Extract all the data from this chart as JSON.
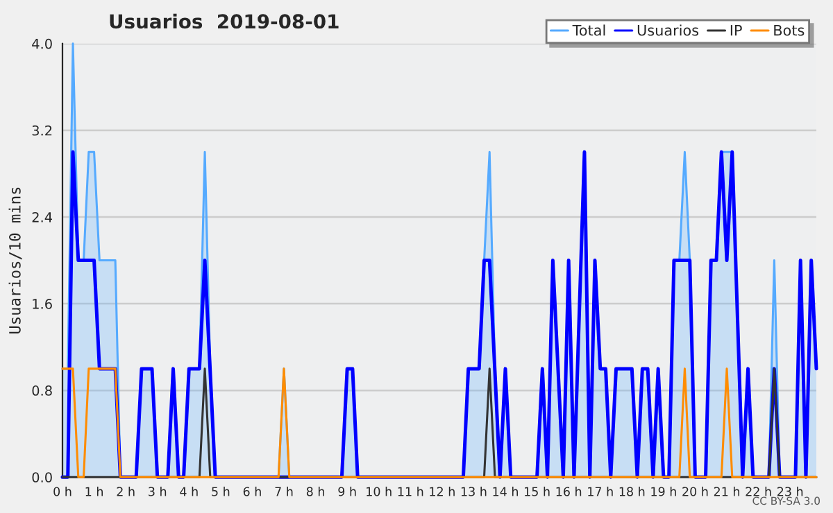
{
  "chart_data": {
    "type": "line",
    "title": "Usuarios  2019-08-01",
    "ylabel": "Usuarios/10 mins",
    "xlim": [
      0,
      23.83
    ],
    "ylim": [
      0,
      4
    ],
    "xticks": [
      {
        "value": 0,
        "label": "0 h"
      },
      {
        "value": 1,
        "label": "1 h"
      },
      {
        "value": 2,
        "label": "2 h"
      },
      {
        "value": 3,
        "label": "3 h"
      },
      {
        "value": 4,
        "label": "4 h"
      },
      {
        "value": 5,
        "label": "5 h"
      },
      {
        "value": 6,
        "label": "6 h"
      },
      {
        "value": 7,
        "label": "7 h"
      },
      {
        "value": 8,
        "label": "8 h"
      },
      {
        "value": 9,
        "label": "9 h"
      },
      {
        "value": 10,
        "label": "10 h"
      },
      {
        "value": 11,
        "label": "11 h"
      },
      {
        "value": 12,
        "label": "12 h"
      },
      {
        "value": 13,
        "label": "13 h"
      },
      {
        "value": 14,
        "label": "14 h"
      },
      {
        "value": 15,
        "label": "15 h"
      },
      {
        "value": 16,
        "label": "16 h"
      },
      {
        "value": 17,
        "label": "17 h"
      },
      {
        "value": 18,
        "label": "18 h"
      },
      {
        "value": 19,
        "label": "19 h"
      },
      {
        "value": 20,
        "label": "20 h"
      },
      {
        "value": 21,
        "label": "21 h"
      },
      {
        "value": 22,
        "label": "22 h"
      },
      {
        "value": 23,
        "label": "23 h"
      }
    ],
    "yticks": [
      {
        "value": 0,
        "label": "0.0"
      },
      {
        "value": 0.8,
        "label": "0.8"
      },
      {
        "value": 1.6,
        "label": "1.6"
      },
      {
        "value": 2.4,
        "label": "2.4"
      },
      {
        "value": 3.2,
        "label": "3.2"
      },
      {
        "value": 4,
        "label": "4.0"
      }
    ],
    "grid": "y",
    "legend": "top right",
    "annotations": [
      "CC BY-SA 3.0"
    ],
    "series": [
      {
        "name": "Total",
        "type": "area",
        "color": "#55aaff",
        "x": [
          0,
          0.17,
          0.33,
          0.5,
          0.67,
          0.83,
          1,
          1.17,
          1.67,
          1.83,
          2.33,
          2.5,
          2.83,
          3,
          3.33,
          3.5,
          3.67,
          3.83,
          4,
          4.33,
          4.5,
          4.67,
          4.83,
          6.83,
          7,
          7.17,
          8.83,
          9,
          9.17,
          9.33,
          12.67,
          12.83,
          13.17,
          13.33,
          13.5,
          13.67,
          13.83,
          14,
          14.17,
          15,
          15.17,
          15.33,
          15.5,
          15.83,
          16,
          16.17,
          16.5,
          16.67,
          16.83,
          17,
          17.17,
          17.33,
          17.5,
          18,
          18.17,
          18.33,
          18.5,
          18.67,
          18.83,
          19,
          19.17,
          19.33,
          19.5,
          19.67,
          19.83,
          20,
          20.33,
          20.5,
          20.67,
          20.83,
          21.17,
          21.5,
          21.67,
          21.83,
          22.33,
          22.5,
          22.67,
          23.17,
          23.33,
          23.5,
          23.67,
          23.83
        ],
        "values": [
          1,
          1,
          4,
          2,
          2,
          3,
          3,
          2,
          2,
          0,
          0,
          1,
          1,
          0,
          0,
          1,
          0,
          0,
          1,
          1,
          3,
          1,
          0,
          0,
          1,
          0,
          0,
          1,
          1,
          0,
          0,
          1,
          1,
          2,
          3,
          1,
          0,
          1,
          0,
          0,
          1,
          0,
          2,
          0,
          2,
          0,
          3,
          0,
          2,
          1,
          1,
          0,
          1,
          1,
          0,
          1,
          1,
          0,
          1,
          0,
          0,
          2,
          2,
          3,
          2,
          0,
          0,
          2,
          2,
          3,
          3,
          0,
          1,
          0,
          0,
          2,
          0,
          0,
          2,
          0,
          2,
          1
        ]
      },
      {
        "name": "Usuarios",
        "color": "#0000ff",
        "x": [
          0,
          0.17,
          0.33,
          0.5,
          1,
          1.17,
          1.67,
          1.83,
          2.33,
          2.5,
          2.83,
          3,
          3.33,
          3.5,
          3.67,
          3.83,
          4,
          4.33,
          4.5,
          4.83,
          8.83,
          9,
          9.17,
          9.33,
          12.67,
          12.83,
          13.17,
          13.33,
          13.5,
          13.83,
          14,
          14.17,
          15,
          15.17,
          15.33,
          15.5,
          15.83,
          16,
          16.17,
          16.5,
          16.67,
          16.83,
          17,
          17.17,
          17.33,
          17.5,
          18,
          18.17,
          18.33,
          18.5,
          18.67,
          18.83,
          19,
          19.17,
          19.33,
          19.83,
          20,
          20.33,
          20.5,
          20.67,
          20.83,
          21,
          21.17,
          21.5,
          21.67,
          21.83,
          22.33,
          22.5,
          22.67,
          23.17,
          23.33,
          23.5,
          23.67,
          23.83
        ],
        "values": [
          0,
          0,
          3,
          2,
          2,
          1,
          1,
          0,
          0,
          1,
          1,
          0,
          0,
          1,
          0,
          0,
          1,
          1,
          2,
          0,
          0,
          1,
          1,
          0,
          0,
          1,
          1,
          2,
          2,
          0,
          1,
          0,
          0,
          1,
          0,
          2,
          0,
          2,
          0,
          3,
          0,
          2,
          1,
          1,
          0,
          1,
          1,
          0,
          1,
          1,
          0,
          1,
          0,
          0,
          2,
          2,
          0,
          0,
          2,
          2,
          3,
          2,
          3,
          0,
          1,
          0,
          0,
          1,
          0,
          0,
          2,
          0,
          2,
          1
        ]
      },
      {
        "name": "IP",
        "color": "#333333",
        "x": [
          0,
          4.33,
          4.5,
          4.67,
          13.33,
          13.5,
          13.67,
          22.33,
          22.5,
          22.67,
          23.83
        ],
        "values": [
          0,
          0,
          1,
          0,
          0,
          1,
          0,
          0,
          1,
          0,
          0
        ]
      },
      {
        "name": "Bots",
        "color": "#ff8c00",
        "x": [
          0,
          0.33,
          0.5,
          0.67,
          0.83,
          1.67,
          1.83,
          6.83,
          7,
          7.17,
          19.5,
          19.67,
          19.83,
          20.83,
          21,
          21.17,
          23.83
        ],
        "values": [
          1,
          1,
          0,
          0,
          1,
          1,
          0,
          0,
          1,
          0,
          0,
          1,
          0,
          0,
          1,
          0,
          0
        ]
      }
    ]
  }
}
